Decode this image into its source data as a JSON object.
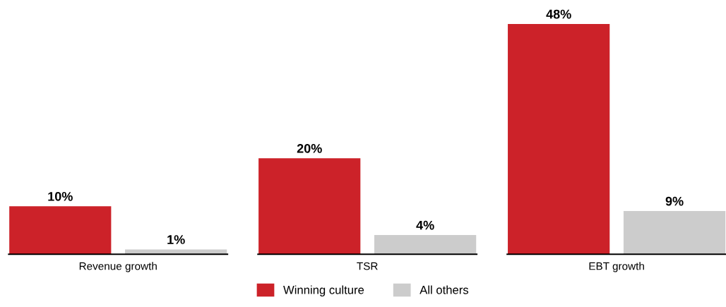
{
  "chart_data": {
    "type": "bar",
    "categories": [
      "Revenue growth",
      "TSR",
      "EBT growth"
    ],
    "series": [
      {
        "name": "Winning culture",
        "color": "#cc2229",
        "values": [
          10,
          20,
          48
        ],
        "value_labels": [
          "10%",
          "20%",
          "48%"
        ]
      },
      {
        "name": "All others",
        "color": "#cccccc",
        "values": [
          1,
          4,
          9
        ],
        "value_labels": [
          "1%",
          "4%",
          "9%"
        ]
      }
    ],
    "legend": "bottom",
    "grid": false
  }
}
